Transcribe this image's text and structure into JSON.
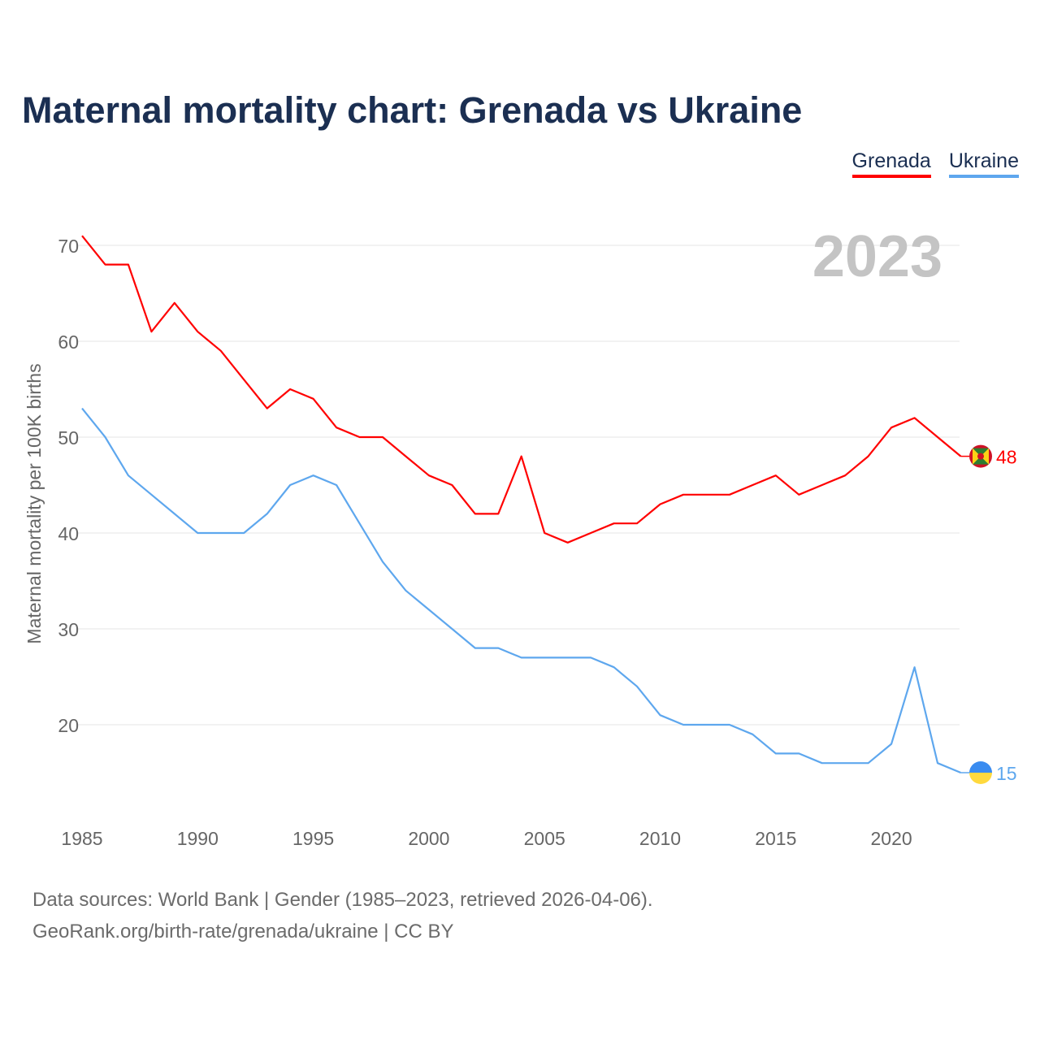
{
  "title": "Maternal mortality chart: Grenada vs Ukraine",
  "footer": {
    "line1": "Data sources: World Bank | Gender (1985–2023, retrieved 2026-04-06).",
    "line2": "GeoRank.org/birth-rate/grenada/ukraine | CC BY"
  },
  "chart_data": {
    "type": "line",
    "title": "Maternal mortality chart: Grenada vs Ukraine",
    "ylabel": "Maternal mortality per 100K births",
    "xlabel": "",
    "year_label": "2023",
    "ylim": [
      10,
      72
    ],
    "xlim": [
      1985,
      2023
    ],
    "yticks": [
      20,
      30,
      40,
      50,
      60,
      70
    ],
    "xticks": [
      1985,
      1990,
      1995,
      2000,
      2005,
      2010,
      2015,
      2020
    ],
    "legend_position": "top-right",
    "x": [
      1985,
      1986,
      1987,
      1988,
      1989,
      1990,
      1991,
      1992,
      1993,
      1994,
      1995,
      1996,
      1997,
      1998,
      1999,
      2000,
      2001,
      2002,
      2003,
      2004,
      2005,
      2006,
      2007,
      2008,
      2009,
      2010,
      2011,
      2012,
      2013,
      2014,
      2015,
      2016,
      2017,
      2018,
      2019,
      2020,
      2021,
      2022,
      2023
    ],
    "series": [
      {
        "name": "Grenada",
        "color": "#ff0000",
        "end_label": "48",
        "values": [
          71,
          68,
          68,
          61,
          64,
          61,
          59,
          56,
          53,
          55,
          54,
          51,
          50,
          50,
          48,
          46,
          45,
          42,
          42,
          48,
          40,
          39,
          40,
          41,
          41,
          43,
          44,
          44,
          44,
          45,
          46,
          44,
          45,
          46,
          48,
          51,
          52,
          50,
          48
        ]
      },
      {
        "name": "Ukraine",
        "color": "#5ea7ee",
        "end_label": "15",
        "values": [
          53,
          50,
          46,
          44,
          42,
          40,
          40,
          40,
          42,
          45,
          46,
          45,
          41,
          37,
          34,
          32,
          30,
          28,
          28,
          27,
          27,
          27,
          27,
          26,
          24,
          21,
          20,
          20,
          20,
          19,
          17,
          17,
          16,
          16,
          16,
          18,
          26,
          16,
          15
        ]
      }
    ]
  }
}
